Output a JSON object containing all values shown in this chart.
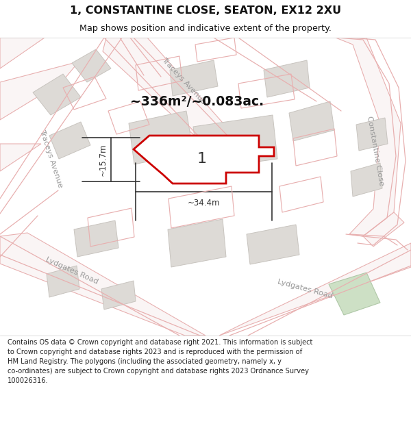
{
  "title": "1, CONSTANTINE CLOSE, SEATON, EX12 2XU",
  "subtitle": "Map shows position and indicative extent of the property.",
  "footer_line1": "Contains OS data © Crown copyright and database right 2021. This information is subject",
  "footer_line2": "to Crown copyright and database rights 2023 and is reproduced with the permission of",
  "footer_line3": "HM Land Registry. The polygons (including the associated geometry, namely x, y",
  "footer_line4": "co-ordinates) are subject to Crown copyright and database rights 2023 Ordnance Survey",
  "footer_line5": "100026316.",
  "area_text": "~336m²/~0.083ac.",
  "width_label": "~34.4m",
  "height_label": "~15.7m",
  "plot_number": "1",
  "map_bg": "#f7f6f5",
  "road_line": "#e8b0b0",
  "road_fill": "#faf5f5",
  "building_fill": "#dddad6",
  "building_edge": "#c8c4bf",
  "property_edge": "#cc0000",
  "property_fill": "#ffffff",
  "dim_color": "#333333",
  "street_color": "#999999",
  "title_color": "#111111",
  "footer_color": "#222222",
  "plot_label_color": "#333333",
  "area_color": "#111111",
  "green_fill": "#cde0c5",
  "green_edge": "#b0c8a8",
  "header_bg": "#ffffff",
  "footer_bg": "#ffffff"
}
